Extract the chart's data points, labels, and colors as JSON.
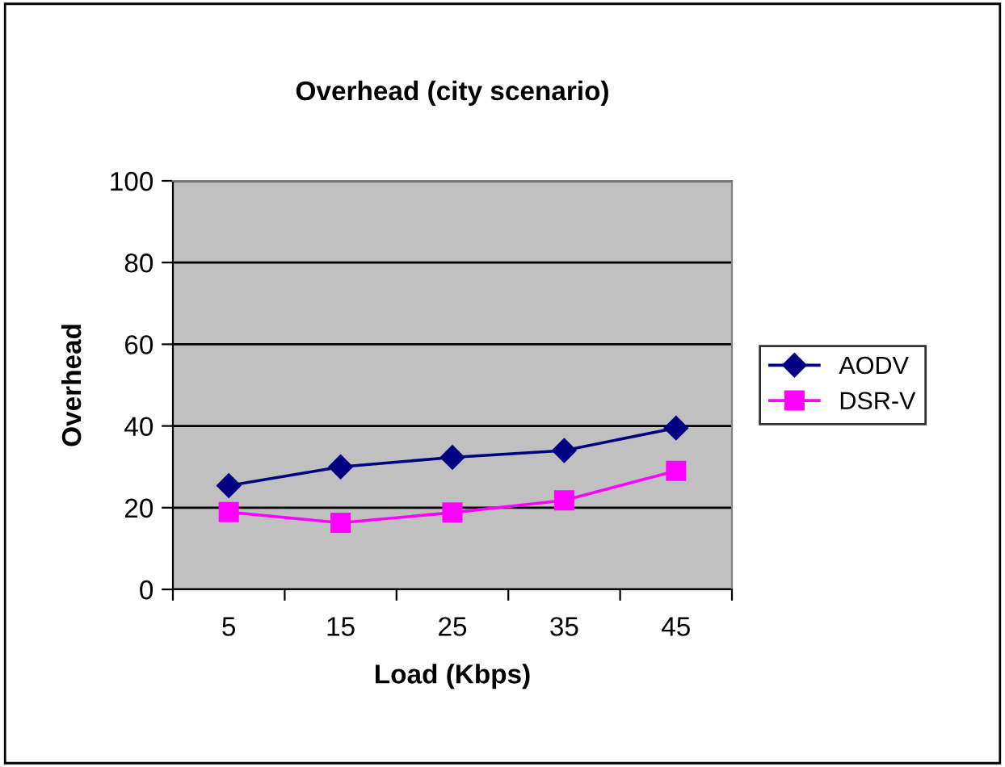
{
  "chart_data": {
    "type": "line",
    "title": "Overhead (city scenario)",
    "xlabel": "Load (Kbps)",
    "ylabel": "Overhead",
    "categories": [
      "5",
      "15",
      "25",
      "35",
      "45"
    ],
    "series": [
      {
        "name": "AODV",
        "color": "#000080",
        "marker": "diamond",
        "values": [
          25.4,
          30,
          32.3,
          34,
          39.5
        ]
      },
      {
        "name": "DSR-V",
        "color": "#ff00ff",
        "marker": "square",
        "values": [
          18.9,
          16.3,
          18.8,
          21.8,
          29
        ]
      }
    ],
    "ylim": [
      0,
      100
    ],
    "yticks": [
      0,
      20,
      40,
      60,
      80,
      100
    ],
    "grid": "y",
    "legend": "right"
  }
}
